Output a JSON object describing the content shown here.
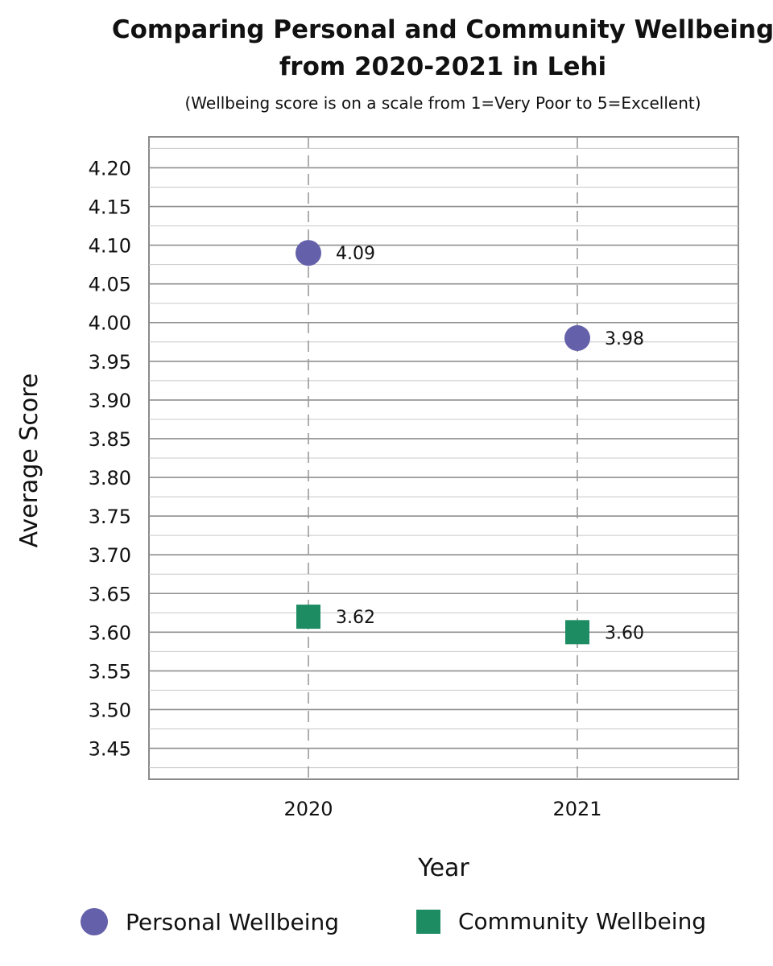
{
  "chart_data": {
    "type": "scatter",
    "title_lines": [
      "Comparing Personal and Community Wellbeing",
      "from 2020-2021 in Lehi"
    ],
    "subtitle": "(Wellbeing score is on a scale from 1=Very Poor to 5=Excellent)",
    "xlabel": "Year",
    "ylabel": "Average Score",
    "categories": [
      "2020",
      "2021"
    ],
    "ylim": [
      3.41,
      4.24
    ],
    "yticks": [
      "3.45",
      "3.50",
      "3.55",
      "3.60",
      "3.65",
      "3.70",
      "3.75",
      "3.80",
      "3.85",
      "3.90",
      "3.95",
      "4.00",
      "4.05",
      "4.10",
      "4.15",
      "4.20"
    ],
    "grid": true,
    "legend_position": "bottom",
    "series": [
      {
        "name": "Personal Wellbeing",
        "marker": "circle",
        "color": "#6460aa",
        "values": [
          4.09,
          3.98
        ],
        "labels": [
          "4.09",
          "3.98"
        ]
      },
      {
        "name": "Community Wellbeing",
        "marker": "square",
        "color": "#1e8c62",
        "values": [
          3.62,
          3.6
        ],
        "labels": [
          "3.62",
          "3.60"
        ]
      }
    ]
  }
}
